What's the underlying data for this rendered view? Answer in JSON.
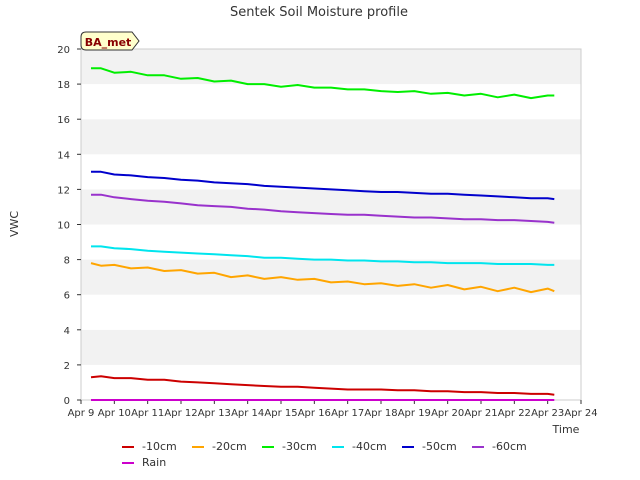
{
  "chart_data": {
    "type": "line",
    "title": "Sentek Soil Moisture profile",
    "xlabel": "Time",
    "ylabel": "VWC",
    "ylim": [
      0,
      20
    ],
    "xlim": [
      0,
      15
    ],
    "x_ticks": [
      0,
      1,
      2,
      3,
      4,
      5,
      6,
      7,
      8,
      9,
      10,
      11,
      12,
      13,
      14,
      15
    ],
    "x_tick_labels": [
      "Apr 9",
      "Apr 10",
      "Apr 11",
      "Apr 12",
      "Apr 13",
      "Apr 14",
      "Apr 15",
      "Apr 16",
      "Apr 17",
      "Apr 18",
      "Apr 19",
      "Apr 20",
      "Apr 21",
      "Apr 22",
      "Apr 23",
      "Apr 24"
    ],
    "y_ticks": [
      0,
      2,
      4,
      6,
      8,
      10,
      12,
      14,
      16,
      18,
      20
    ],
    "grid": "horizontal bands",
    "annotation": "BA_met",
    "legend_position": "bottom",
    "x": [
      0.3,
      0.6,
      1,
      1.5,
      2,
      2.5,
      3,
      3.5,
      4,
      4.5,
      5,
      5.5,
      6,
      6.5,
      7,
      7.5,
      8,
      8.5,
      9,
      9.5,
      10,
      10.5,
      11,
      11.5,
      12,
      12.5,
      13,
      13.5,
      14,
      14.2
    ],
    "series": [
      {
        "name": "-10cm",
        "color": "#cc0000",
        "values": [
          1.3,
          1.35,
          1.25,
          1.25,
          1.15,
          1.15,
          1.05,
          1.0,
          0.95,
          0.9,
          0.85,
          0.8,
          0.75,
          0.75,
          0.7,
          0.65,
          0.6,
          0.6,
          0.6,
          0.55,
          0.55,
          0.5,
          0.5,
          0.45,
          0.45,
          0.4,
          0.4,
          0.35,
          0.35,
          0.3
        ]
      },
      {
        "name": "-20cm",
        "color": "#ffa500",
        "values": [
          7.8,
          7.65,
          7.7,
          7.5,
          7.55,
          7.35,
          7.4,
          7.2,
          7.25,
          7.0,
          7.1,
          6.9,
          7.0,
          6.85,
          6.9,
          6.7,
          6.75,
          6.6,
          6.65,
          6.5,
          6.6,
          6.4,
          6.55,
          6.3,
          6.45,
          6.2,
          6.4,
          6.15,
          6.35,
          6.2
        ]
      },
      {
        "name": "-30cm",
        "color": "#00ee00",
        "values": [
          18.9,
          18.9,
          18.65,
          18.7,
          18.5,
          18.5,
          18.3,
          18.35,
          18.15,
          18.2,
          18.0,
          18.0,
          17.85,
          17.95,
          17.8,
          17.8,
          17.7,
          17.7,
          17.6,
          17.55,
          17.6,
          17.45,
          17.5,
          17.35,
          17.45,
          17.25,
          17.4,
          17.2,
          17.35,
          17.35
        ]
      },
      {
        "name": "-40cm",
        "color": "#00e5ee",
        "values": [
          8.75,
          8.75,
          8.65,
          8.6,
          8.5,
          8.45,
          8.4,
          8.35,
          8.3,
          8.25,
          8.2,
          8.1,
          8.1,
          8.05,
          8.0,
          8.0,
          7.95,
          7.95,
          7.9,
          7.9,
          7.85,
          7.85,
          7.8,
          7.8,
          7.8,
          7.75,
          7.75,
          7.75,
          7.7,
          7.7
        ]
      },
      {
        "name": "-50cm",
        "color": "#0000cc",
        "values": [
          13.0,
          13.0,
          12.85,
          12.8,
          12.7,
          12.65,
          12.55,
          12.5,
          12.4,
          12.35,
          12.3,
          12.2,
          12.15,
          12.1,
          12.05,
          12.0,
          11.95,
          11.9,
          11.85,
          11.85,
          11.8,
          11.75,
          11.75,
          11.7,
          11.65,
          11.6,
          11.55,
          11.5,
          11.5,
          11.45
        ]
      },
      {
        "name": "-60cm",
        "color": "#9932cc",
        "values": [
          11.7,
          11.7,
          11.55,
          11.45,
          11.35,
          11.3,
          11.2,
          11.1,
          11.05,
          11.0,
          10.9,
          10.85,
          10.75,
          10.7,
          10.65,
          10.6,
          10.55,
          10.55,
          10.5,
          10.45,
          10.4,
          10.4,
          10.35,
          10.3,
          10.3,
          10.25,
          10.25,
          10.2,
          10.15,
          10.1
        ]
      },
      {
        "name": "Rain",
        "color": "#cc00cc",
        "values": [
          0,
          0,
          0,
          0,
          0,
          0,
          0,
          0,
          0,
          0,
          0,
          0,
          0,
          0,
          0,
          0,
          0,
          0,
          0,
          0,
          0,
          0,
          0,
          0,
          0,
          0,
          0,
          0,
          0,
          0
        ]
      }
    ]
  }
}
